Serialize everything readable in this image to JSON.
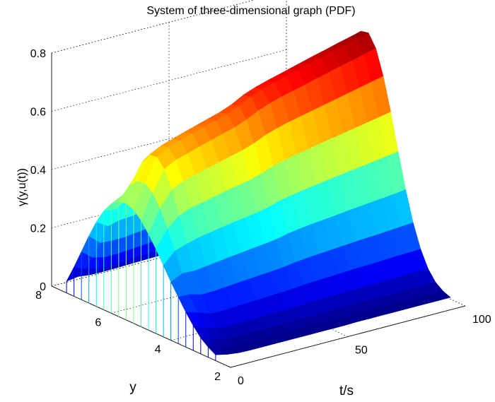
{
  "chart_data": {
    "type": "surface",
    "title": "System of three-dimensional graph (PDF)",
    "xlabel": "t/s",
    "ylabel": "y",
    "zlabel": "γ(y,u(t))",
    "xlim": [
      0,
      100
    ],
    "ylim": [
      2,
      8
    ],
    "zlim": [
      0,
      0.8
    ],
    "x_ticks": [
      "0",
      "50",
      "100"
    ],
    "y_ticks": [
      "2",
      "4",
      "6",
      "8"
    ],
    "z_ticks": [
      "0",
      "0.2",
      "0.4",
      "0.6",
      "0.8"
    ],
    "grid": true,
    "colormap": "jet",
    "x": [
      0,
      5,
      10,
      15,
      20,
      25,
      30,
      35,
      40,
      45,
      50,
      55,
      60,
      65,
      70,
      75,
      80,
      85,
      90,
      95,
      100
    ],
    "y": [
      2.5,
      2.75,
      3.0,
      3.25,
      3.5,
      3.75,
      4.0,
      4.25,
      4.5,
      4.75,
      5.0,
      5.25,
      5.5,
      5.75,
      6.0,
      6.25,
      6.5,
      6.75,
      7.0,
      7.25,
      7.5
    ],
    "z": [
      [
        0.02,
        0.035,
        0.055,
        0.085,
        0.12,
        0.16,
        0.2,
        0.245,
        0.29,
        0.33,
        0.365,
        0.39,
        0.4,
        0.395,
        0.375,
        0.34,
        0.29,
        0.23,
        0.165,
        0.1,
        0.04
      ],
      [
        0.011,
        0.022,
        0.04,
        0.068,
        0.107,
        0.158,
        0.219,
        0.285,
        0.35,
        0.407,
        0.449,
        0.47,
        0.467,
        0.441,
        0.395,
        0.334,
        0.266,
        0.197,
        0.134,
        0.083,
        0.046
      ],
      [
        0.006,
        0.014,
        0.029,
        0.054,
        0.093,
        0.147,
        0.217,
        0.298,
        0.383,
        0.461,
        0.52,
        0.55,
        0.547,
        0.51,
        0.446,
        0.364,
        0.276,
        0.194,
        0.126,
        0.075,
        0.041
      ],
      [
        0.005,
        0.012,
        0.026,
        0.051,
        0.09,
        0.148,
        0.222,
        0.309,
        0.399,
        0.48,
        0.541,
        0.572,
        0.567,
        0.527,
        0.458,
        0.371,
        0.279,
        0.195,
        0.126,
        0.075,
        0.04
      ],
      [
        0.005,
        0.012,
        0.026,
        0.052,
        0.093,
        0.151,
        0.227,
        0.316,
        0.408,
        0.491,
        0.553,
        0.585,
        0.58,
        0.539,
        0.469,
        0.379,
        0.286,
        0.2,
        0.129,
        0.076,
        0.041
      ],
      [
        0.005,
        0.012,
        0.027,
        0.053,
        0.095,
        0.155,
        0.232,
        0.323,
        0.417,
        0.502,
        0.566,
        0.598,
        0.593,
        0.551,
        0.479,
        0.388,
        0.292,
        0.204,
        0.132,
        0.078,
        0.042
      ],
      [
        0.005,
        0.013,
        0.027,
        0.054,
        0.097,
        0.158,
        0.237,
        0.33,
        0.426,
        0.512,
        0.577,
        0.61,
        0.605,
        0.562,
        0.489,
        0.396,
        0.298,
        0.208,
        0.135,
        0.08,
        0.043
      ],
      [
        0.005,
        0.013,
        0.028,
        0.055,
        0.099,
        0.161,
        0.242,
        0.336,
        0.434,
        0.522,
        0.589,
        0.622,
        0.617,
        0.574,
        0.499,
        0.404,
        0.304,
        0.212,
        0.137,
        0.081,
        0.044
      ],
      [
        0.005,
        0.013,
        0.028,
        0.056,
        0.101,
        0.164,
        0.246,
        0.342,
        0.442,
        0.532,
        0.6,
        0.634,
        0.629,
        0.584,
        0.508,
        0.411,
        0.31,
        0.216,
        0.14,
        0.083,
        0.045
      ],
      [
        0.005,
        0.013,
        0.029,
        0.058,
        0.103,
        0.168,
        0.252,
        0.351,
        0.454,
        0.546,
        0.616,
        0.65,
        0.645,
        0.599,
        0.521,
        0.422,
        0.318,
        0.222,
        0.143,
        0.085,
        0.046
      ],
      [
        0.005,
        0.014,
        0.03,
        0.06,
        0.107,
        0.174,
        0.261,
        0.363,
        0.469,
        0.564,
        0.636,
        0.672,
        0.667,
        0.62,
        0.539,
        0.436,
        0.328,
        0.229,
        0.148,
        0.088,
        0.047
      ],
      [
        0.005,
        0.014,
        0.031,
        0.061,
        0.109,
        0.178,
        0.267,
        0.371,
        0.479,
        0.577,
        0.651,
        0.687,
        0.682,
        0.634,
        0.551,
        0.446,
        0.336,
        0.234,
        0.152,
        0.09,
        0.048
      ],
      [
        0.006,
        0.014,
        0.031,
        0.062,
        0.111,
        0.181,
        0.272,
        0.378,
        0.488,
        0.588,
        0.663,
        0.7,
        0.694,
        0.645,
        0.561,
        0.454,
        0.342,
        0.239,
        0.154,
        0.091,
        0.049
      ],
      [
        0.006,
        0.015,
        0.032,
        0.063,
        0.113,
        0.184,
        0.276,
        0.384,
        0.496,
        0.597,
        0.673,
        0.711,
        0.705,
        0.655,
        0.57,
        0.461,
        0.347,
        0.242,
        0.157,
        0.093,
        0.05
      ],
      [
        0.006,
        0.015,
        0.032,
        0.064,
        0.115,
        0.187,
        0.28,
        0.39,
        0.504,
        0.606,
        0.683,
        0.722,
        0.716,
        0.665,
        0.579,
        0.468,
        0.352,
        0.246,
        0.159,
        0.094,
        0.051
      ],
      [
        0.006,
        0.015,
        0.033,
        0.065,
        0.117,
        0.19,
        0.285,
        0.396,
        0.511,
        0.615,
        0.694,
        0.733,
        0.727,
        0.675,
        0.588,
        0.476,
        0.358,
        0.25,
        0.161,
        0.096,
        0.052
      ],
      [
        0.006,
        0.015,
        0.033,
        0.066,
        0.118,
        0.193,
        0.289,
        0.402,
        0.519,
        0.624,
        0.704,
        0.744,
        0.738,
        0.685,
        0.596,
        0.483,
        0.363,
        0.253,
        0.164,
        0.097,
        0.053
      ],
      [
        0.006,
        0.016,
        0.034,
        0.067,
        0.12,
        0.195,
        0.293,
        0.407,
        0.526,
        0.633,
        0.714,
        0.754,
        0.748,
        0.695,
        0.605,
        0.489,
        0.368,
        0.257,
        0.166,
        0.098,
        0.053
      ],
      [
        0.006,
        0.016,
        0.034,
        0.068,
        0.122,
        0.198,
        0.297,
        0.413,
        0.534,
        0.642,
        0.724,
        0.765,
        0.759,
        0.705,
        0.613,
        0.496,
        0.374,
        0.26,
        0.168,
        0.1,
        0.054
      ],
      [
        0.006,
        0.016,
        0.035,
        0.069,
        0.123,
        0.201,
        0.301,
        0.419,
        0.541,
        0.651,
        0.734,
        0.775,
        0.769,
        0.714,
        0.622,
        0.503,
        0.379,
        0.264,
        0.171,
        0.101,
        0.055
      ],
      [
        0.006,
        0.016,
        0.035,
        0.07,
        0.125,
        0.204,
        0.306,
        0.425,
        0.549,
        0.66,
        0.744,
        0.786,
        0.78,
        0.724,
        0.63,
        0.51,
        0.384,
        0.268,
        0.173,
        0.103,
        0.056
      ]
    ]
  }
}
